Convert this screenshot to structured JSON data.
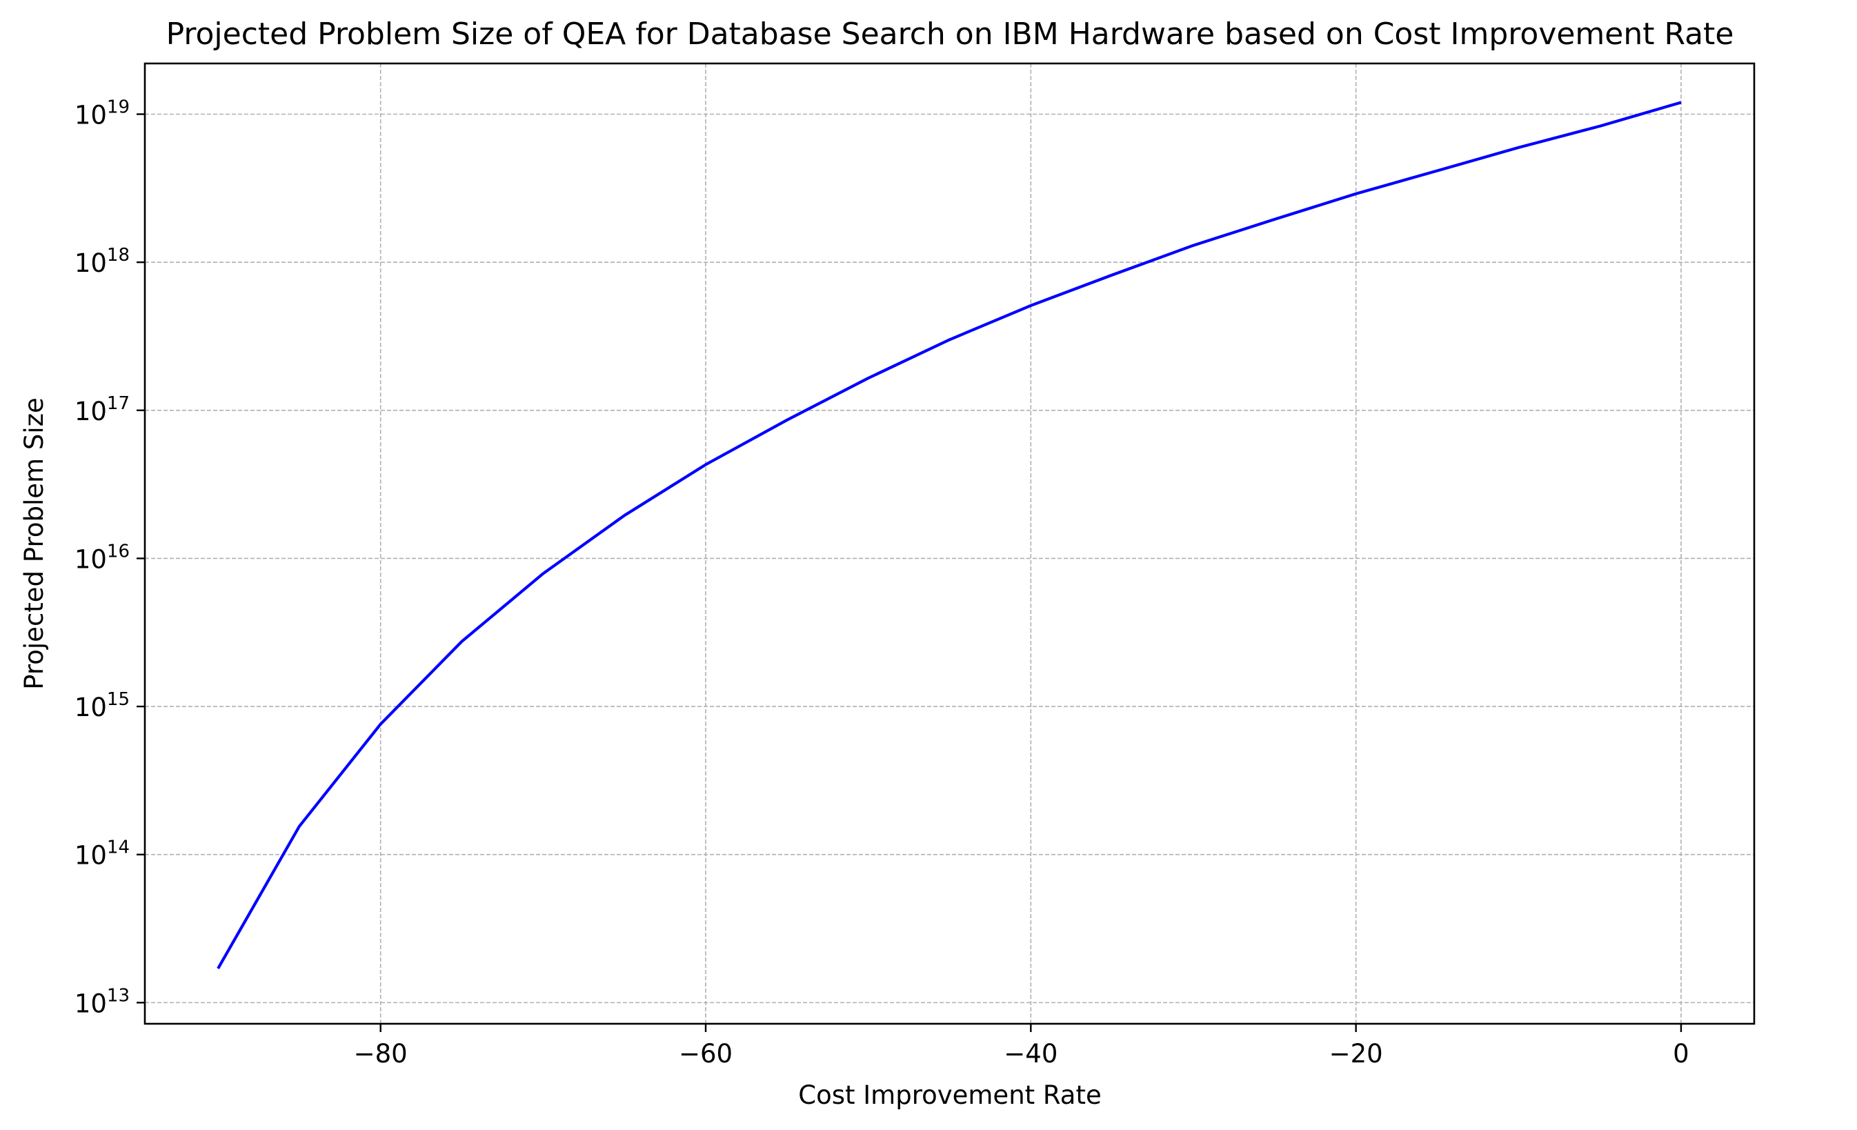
{
  "chart_data": {
    "type": "line",
    "title": "Projected Problem Size of QEA for Database Search on IBM Hardware based on Cost Improvement Rate",
    "xlabel": "Cost Improvement Rate",
    "ylabel": "Projected Problem Size",
    "xlim": [
      -94.5,
      4.5
    ],
    "ylim": [
      7200000000000.0,
      2.2e+19
    ],
    "yscale": "log",
    "grid": true,
    "x_ticks": [
      -80,
      -60,
      -40,
      -20,
      0
    ],
    "x_tick_labels": [
      "−80",
      "−60",
      "−40",
      "−20",
      "0"
    ],
    "y_ticks": [
      10000000000000.0,
      100000000000000.0,
      1000000000000000.0,
      1e+16,
      1e+17,
      1e+18,
      1e+19
    ],
    "y_tick_labels": [
      {
        "base": "10",
        "exp": "13"
      },
      {
        "base": "10",
        "exp": "14"
      },
      {
        "base": "10",
        "exp": "15"
      },
      {
        "base": "10",
        "exp": "16"
      },
      {
        "base": "10",
        "exp": "17"
      },
      {
        "base": "10",
        "exp": "18"
      },
      {
        "base": "10",
        "exp": "19"
      }
    ],
    "colors": {
      "line": "#0000ff",
      "grid": "#b0b0b0",
      "axes": "#000000"
    },
    "series": [
      {
        "x": [
          -90,
          -85,
          -80,
          -75,
          -70,
          -65,
          -60,
          -55,
          -50,
          -45,
          -40,
          -35,
          -30,
          -25,
          -20,
          -15,
          -10,
          -5,
          0
        ],
        "y": [
          17000000000000.0,
          155000000000000.0,
          760000000000000.0,
          2750000000000000.0,
          7900000000000000.0,
          1.95e+16,
          4.3e+16,
          8.6e+16,
          1.65e+17,
          3e+17,
          5.1e+17,
          8.2e+17,
          1.3e+18,
          1.95e+18,
          2.9e+18,
          4.15e+18,
          5.95e+18,
          8.3e+18,
          1.2e+19
        ]
      }
    ]
  }
}
